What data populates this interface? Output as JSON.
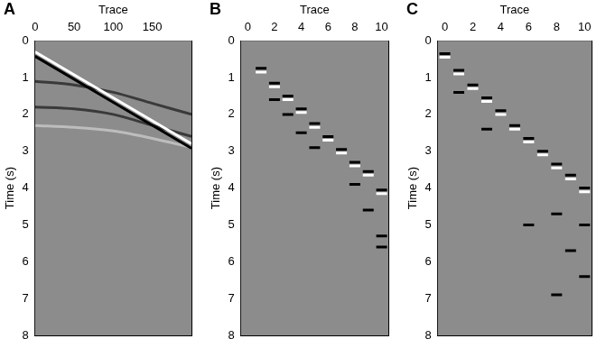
{
  "chart_data": [
    {
      "type": "line",
      "title": "A",
      "x_label": "Trace",
      "y_label": "Time (s)",
      "xlim": [
        0,
        200
      ],
      "xticks": [
        0,
        50,
        100,
        150
      ],
      "ylim": [
        0,
        8
      ],
      "yticks": [
        0,
        1,
        2,
        3,
        4,
        5,
        6,
        7,
        8
      ],
      "grid": false,
      "series": [
        {
          "type": "line",
          "line_style": "solid",
          "color": "#ffffff",
          "x": [
            0,
            200
          ],
          "values": [
            0.3,
            2.8
          ]
        },
        {
          "type": "line",
          "line_style": "solid",
          "color": "#000000",
          "x": [
            0,
            200
          ],
          "values": [
            0.42,
            2.92
          ]
        },
        {
          "type": "line",
          "line_style": "solid",
          "color": "#3a3a3a",
          "x": [
            0,
            50,
            100,
            150,
            200
          ],
          "values": [
            1.1,
            1.2,
            1.4,
            1.7,
            2.0
          ]
        },
        {
          "type": "line",
          "line_style": "solid",
          "color": "#3a3a3a",
          "x": [
            0,
            50,
            100,
            150,
            200
          ],
          "values": [
            1.8,
            1.85,
            2.0,
            2.3,
            2.6
          ]
        },
        {
          "type": "line",
          "line_style": "solid",
          "color": "#bdbdbd",
          "x": [
            0,
            50,
            100,
            150,
            200
          ],
          "values": [
            2.3,
            2.35,
            2.45,
            2.65,
            2.9
          ]
        }
      ]
    },
    {
      "type": "scatter",
      "title": "B",
      "x_label": "Trace",
      "y_label": "Time (s)",
      "xlim": [
        -0.5,
        10.5
      ],
      "xticks": [
        0,
        2,
        4,
        6,
        8,
        10
      ],
      "ylim": [
        0,
        8
      ],
      "yticks": [
        0,
        1,
        2,
        3,
        4,
        5,
        6,
        7,
        8
      ],
      "grid": false,
      "series": [
        {
          "type": "scatter",
          "marker": "line",
          "color": "#000000",
          "x": [
            1,
            2,
            3,
            4,
            5,
            6,
            7,
            8,
            9,
            10
          ],
          "values": [
            0.75,
            1.15,
            1.5,
            1.85,
            2.25,
            2.6,
            2.95,
            3.3,
            3.55,
            4.05
          ]
        },
        {
          "type": "scatter",
          "marker": "line",
          "color": "#ffffff",
          "x": [
            1,
            2,
            3,
            4,
            5,
            6,
            7,
            8,
            9,
            10
          ],
          "values": [
            0.85,
            1.25,
            1.6,
            1.95,
            2.35,
            2.7,
            3.05,
            3.4,
            3.65,
            4.15
          ]
        },
        {
          "type": "scatter",
          "marker": "line",
          "color": "#000000",
          "x": [
            2,
            3,
            4,
            5,
            8,
            9,
            10,
            10
          ],
          "values": [
            1.6,
            2.0,
            2.5,
            2.9,
            3.9,
            4.6,
            5.3,
            5.6
          ]
        }
      ]
    },
    {
      "type": "scatter",
      "title": "C",
      "x_label": "Trace",
      "y_label": "Time (s)",
      "xlim": [
        -0.5,
        10.5
      ],
      "xticks": [
        0,
        2,
        4,
        6,
        8,
        10
      ],
      "ylim": [
        0,
        8
      ],
      "yticks": [
        0,
        1,
        2,
        3,
        4,
        5,
        6,
        7,
        8
      ],
      "grid": false,
      "series": [
        {
          "type": "scatter",
          "marker": "line",
          "color": "#000000",
          "x": [
            0,
            1,
            2,
            3,
            4,
            5,
            6,
            7,
            8,
            9,
            10
          ],
          "values": [
            0.35,
            0.8,
            1.2,
            1.55,
            1.9,
            2.3,
            2.65,
            3.0,
            3.35,
            3.65,
            4.0
          ]
        },
        {
          "type": "scatter",
          "marker": "line",
          "color": "#ffffff",
          "x": [
            0,
            1,
            2,
            3,
            4,
            5,
            6,
            7,
            8,
            9,
            10
          ],
          "values": [
            0.45,
            0.9,
            1.3,
            1.65,
            2.0,
            2.4,
            2.75,
            3.1,
            3.45,
            3.75,
            4.1
          ]
        },
        {
          "type": "scatter",
          "marker": "line",
          "color": "#000000",
          "x": [
            1,
            3,
            6,
            8,
            8,
            9,
            10,
            10
          ],
          "values": [
            1.4,
            2.4,
            5.0,
            4.7,
            6.9,
            5.7,
            5.0,
            6.4
          ]
        }
      ]
    }
  ]
}
